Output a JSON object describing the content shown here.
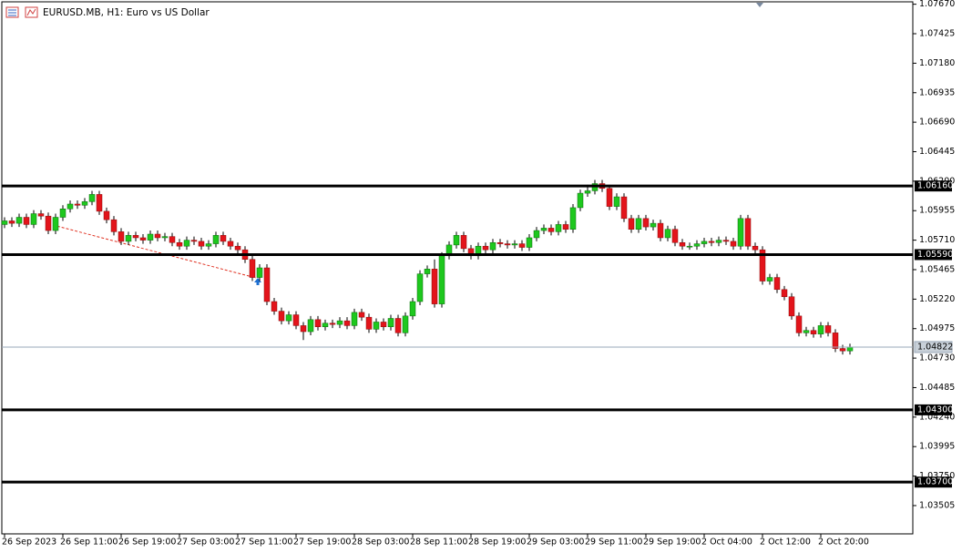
{
  "chart_data": {
    "type": "candlestick",
    "title": "EURUSD.MB, H1:  Euro vs US Dollar",
    "up_color": "#1ec81e",
    "down_color": "#e3141b",
    "categories": [
      "26 Sep 2023",
      null,
      null,
      null,
      null,
      null,
      null,
      null,
      "26 Sep 11:00",
      null,
      null,
      null,
      null,
      null,
      null,
      null,
      "26 Sep 19:00",
      null,
      null,
      null,
      null,
      null,
      null,
      null,
      "27 Sep 03:00",
      null,
      null,
      null,
      null,
      null,
      null,
      null,
      "27 Sep 11:00",
      null,
      null,
      null,
      null,
      null,
      null,
      null,
      "27 Sep 19:00",
      null,
      null,
      null,
      null,
      null,
      null,
      null,
      "28 Sep 03:00",
      null,
      null,
      null,
      null,
      null,
      null,
      null,
      "28 Sep 11:00",
      null,
      null,
      null,
      null,
      null,
      null,
      null,
      "28 Sep 19:00",
      null,
      null,
      null,
      null,
      null,
      null,
      null,
      "29 Sep 03:00",
      null,
      null,
      null,
      null,
      null,
      null,
      null,
      "29 Sep 11:00",
      null,
      null,
      null,
      null,
      null,
      null,
      null,
      "29 Sep 19:00",
      null,
      null,
      null,
      null,
      null,
      null,
      null,
      "2 Oct 04:00",
      null,
      null,
      null,
      null,
      null,
      null,
      null,
      "2 Oct 12:00",
      null,
      null,
      null,
      null,
      null,
      null,
      null,
      "2 Oct 20:00",
      null,
      null,
      null,
      null
    ],
    "open": [
      1.0584,
      1.0587,
      1.0585,
      1.059,
      1.0584,
      1.0593,
      1.0591,
      1.0579,
      1.059,
      1.0597,
      1.0601,
      1.06,
      1.0603,
      1.0609,
      1.0595,
      1.0588,
      1.0578,
      1.057,
      1.0575,
      1.0573,
      1.0571,
      1.0576,
      1.0573,
      1.0574,
      1.0569,
      1.0566,
      1.0571,
      1.057,
      1.0566,
      1.0568,
      1.0575,
      1.057,
      1.0566,
      1.0563,
      1.0555,
      1.054,
      1.0548,
      1.052,
      1.0512,
      1.0504,
      1.0509,
      1.05,
      1.0495,
      1.0505,
      1.0499,
      1.0502,
      1.0501,
      1.0504,
      1.05,
      1.0511,
      1.0507,
      1.0497,
      1.0503,
      1.0499,
      1.0506,
      1.0494,
      1.0508,
      1.052,
      1.0543,
      1.0547,
      1.0518,
      1.0558,
      1.0567,
      1.0575,
      1.0564,
      1.0558,
      1.0566,
      1.0563,
      1.0569,
      1.0568,
      1.0567,
      1.0568,
      1.0565,
      1.0573,
      1.0579,
      1.0581,
      1.0578,
      1.0584,
      1.058,
      1.0598,
      1.061,
      1.0612,
      1.0618,
      1.0614,
      1.0599,
      1.0607,
      1.0589,
      1.058,
      1.0589,
      1.0582,
      1.0585,
      1.0573,
      1.058,
      1.0569,
      1.0566,
      1.0566,
      1.0568,
      1.057,
      1.0569,
      1.0571,
      1.057,
      1.0566,
      1.0589,
      1.0566,
      1.0563,
      1.0537,
      1.054,
      1.053,
      1.0524,
      1.0508,
      1.0494,
      1.0496,
      1.0493,
      1.05,
      1.0494,
      1.0481,
      1.0479
    ],
    "high": [
      1.059,
      1.059,
      1.0593,
      1.0593,
      1.0596,
      1.0596,
      1.0594,
      1.0593,
      1.06,
      1.0604,
      1.0604,
      1.0606,
      1.0612,
      1.0612,
      1.0598,
      1.0591,
      1.0581,
      1.0578,
      1.0578,
      1.0576,
      1.0579,
      1.0579,
      1.0577,
      1.0577,
      1.0572,
      1.0574,
      1.0574,
      1.0573,
      1.0571,
      1.0578,
      1.0578,
      1.0573,
      1.0569,
      1.0566,
      1.0558,
      1.0551,
      1.0551,
      1.0523,
      1.0515,
      1.0512,
      1.0512,
      1.0503,
      1.0508,
      1.0508,
      1.0505,
      1.0505,
      1.0507,
      1.0507,
      1.0514,
      1.0514,
      1.051,
      1.0506,
      1.0506,
      1.0509,
      1.0509,
      1.0511,
      1.0523,
      1.0546,
      1.055,
      1.0555,
      1.0561,
      1.057,
      1.0578,
      1.0578,
      1.0567,
      1.0569,
      1.0569,
      1.0572,
      1.0572,
      1.0571,
      1.0571,
      1.0571,
      1.0576,
      1.0582,
      1.0584,
      1.0584,
      1.0587,
      1.0587,
      1.0601,
      1.0613,
      1.0617,
      1.0621,
      1.0621,
      1.0617,
      1.061,
      1.061,
      1.0592,
      1.0592,
      1.0592,
      1.0588,
      1.0588,
      1.0583,
      1.0583,
      1.0572,
      1.0569,
      1.0571,
      1.0573,
      1.0573,
      1.0574,
      1.0574,
      1.0573,
      1.0592,
      1.0592,
      1.0569,
      1.0566,
      1.0543,
      1.0543,
      1.0533,
      1.0527,
      1.0511,
      1.0499,
      1.0499,
      1.0503,
      1.0503,
      1.0497,
      1.0484,
      1.0485
    ],
    "low": [
      1.0581,
      1.0582,
      1.0582,
      1.0581,
      1.0581,
      1.0588,
      1.0576,
      1.0576,
      1.0587,
      1.0594,
      1.0597,
      1.0597,
      1.06,
      1.0592,
      1.0585,
      1.0575,
      1.0567,
      1.0567,
      1.057,
      1.0568,
      1.0568,
      1.057,
      1.057,
      1.0566,
      1.0563,
      1.0563,
      1.0567,
      1.0563,
      1.0563,
      1.0565,
      1.0567,
      1.0563,
      1.056,
      1.0552,
      1.0537,
      1.0537,
      1.0517,
      1.0509,
      1.0501,
      1.0501,
      1.0497,
      1.0488,
      1.0492,
      1.0496,
      1.0496,
      1.0498,
      1.0498,
      1.0497,
      1.0497,
      1.0504,
      1.0494,
      1.0494,
      1.0496,
      1.0496,
      1.0491,
      1.0491,
      1.0505,
      1.0517,
      1.054,
      1.0515,
      1.0515,
      1.0555,
      1.0564,
      1.0561,
      1.0555,
      1.0555,
      1.056,
      1.056,
      1.0565,
      1.0564,
      1.0564,
      1.0562,
      1.0562,
      1.057,
      1.0576,
      1.0575,
      1.0575,
      1.0577,
      1.0577,
      1.0595,
      1.0607,
      1.0609,
      1.0611,
      1.0596,
      1.0596,
      1.0586,
      1.0577,
      1.0577,
      1.0579,
      1.0579,
      1.057,
      1.057,
      1.0566,
      1.0563,
      1.0563,
      1.0563,
      1.0565,
      1.0566,
      1.0566,
      1.0567,
      1.0563,
      1.0563,
      1.0563,
      1.056,
      1.0534,
      1.0534,
      1.0527,
      1.0521,
      1.0505,
      1.0491,
      1.0491,
      1.049,
      1.049,
      1.0491,
      1.0478,
      1.0476,
      1.0476
    ],
    "close": [
      1.0587,
      1.0585,
      1.059,
      1.0584,
      1.0593,
      1.0591,
      1.0579,
      1.059,
      1.0597,
      1.0601,
      1.06,
      1.0603,
      1.0609,
      1.0595,
      1.0588,
      1.0578,
      1.057,
      1.0575,
      1.0573,
      1.0571,
      1.0576,
      1.0573,
      1.0574,
      1.0569,
      1.0566,
      1.0571,
      1.057,
      1.0566,
      1.0568,
      1.0575,
      1.057,
      1.0566,
      1.0563,
      1.0555,
      1.054,
      1.0548,
      1.052,
      1.0512,
      1.0504,
      1.0509,
      1.05,
      1.0495,
      1.0505,
      1.0499,
      1.0502,
      1.0501,
      1.0504,
      1.05,
      1.0511,
      1.0507,
      1.0497,
      1.0503,
      1.0499,
      1.0506,
      1.0494,
      1.0508,
      1.052,
      1.0543,
      1.0547,
      1.0518,
      1.0558,
      1.0567,
      1.0575,
      1.0564,
      1.0558,
      1.0566,
      1.0563,
      1.0569,
      1.0568,
      1.0567,
      1.0568,
      1.0565,
      1.0573,
      1.0579,
      1.0581,
      1.0578,
      1.0584,
      1.058,
      1.0598,
      1.061,
      1.0612,
      1.0618,
      1.0614,
      1.0599,
      1.0607,
      1.0589,
      1.058,
      1.0589,
      1.0582,
      1.0585,
      1.0573,
      1.058,
      1.0569,
      1.0566,
      1.0566,
      1.0568,
      1.057,
      1.0569,
      1.0571,
      1.057,
      1.0566,
      1.0589,
      1.0566,
      1.0563,
      1.0537,
      1.054,
      1.053,
      1.0524,
      1.0508,
      1.0494,
      1.0496,
      1.0493,
      1.05,
      1.0494,
      1.0481,
      1.0479,
      1.04822
    ],
    "ylim": [
      1.0327,
      1.0769
    ],
    "yticks": [
      {
        "value": 1.0767,
        "label": "1.07670"
      },
      {
        "value": 1.07425,
        "label": "1.07425"
      },
      {
        "value": 1.0718,
        "label": "1.07180"
      },
      {
        "value": 1.06935,
        "label": "1.06935"
      },
      {
        "value": 1.0669,
        "label": "1.06690"
      },
      {
        "value": 1.06445,
        "label": "1.06445"
      },
      {
        "value": 1.062,
        "label": "1.06200"
      },
      {
        "value": 1.05955,
        "label": "1.05955"
      },
      {
        "value": 1.0571,
        "label": "1.05710"
      },
      {
        "value": 1.05465,
        "label": "1.05465"
      },
      {
        "value": 1.0522,
        "label": "1.05220"
      },
      {
        "value": 1.04975,
        "label": "1.04975"
      },
      {
        "value": 1.0473,
        "label": "1.04730"
      },
      {
        "value": 1.04485,
        "label": "1.04485"
      },
      {
        "value": 1.0424,
        "label": "1.04240"
      },
      {
        "value": 1.03995,
        "label": "1.03995"
      },
      {
        "value": 1.0375,
        "label": "1.03750"
      },
      {
        "value": 1.03505,
        "label": "1.03505"
      }
    ],
    "levels": [
      {
        "value": 1.0616,
        "label": "1.06160"
      },
      {
        "value": 1.0559,
        "label": "1.05590"
      },
      {
        "value": 1.043,
        "label": "1.04300"
      },
      {
        "value": 1.037,
        "label": "1.03700"
      }
    ],
    "bid": 1.04822
  }
}
